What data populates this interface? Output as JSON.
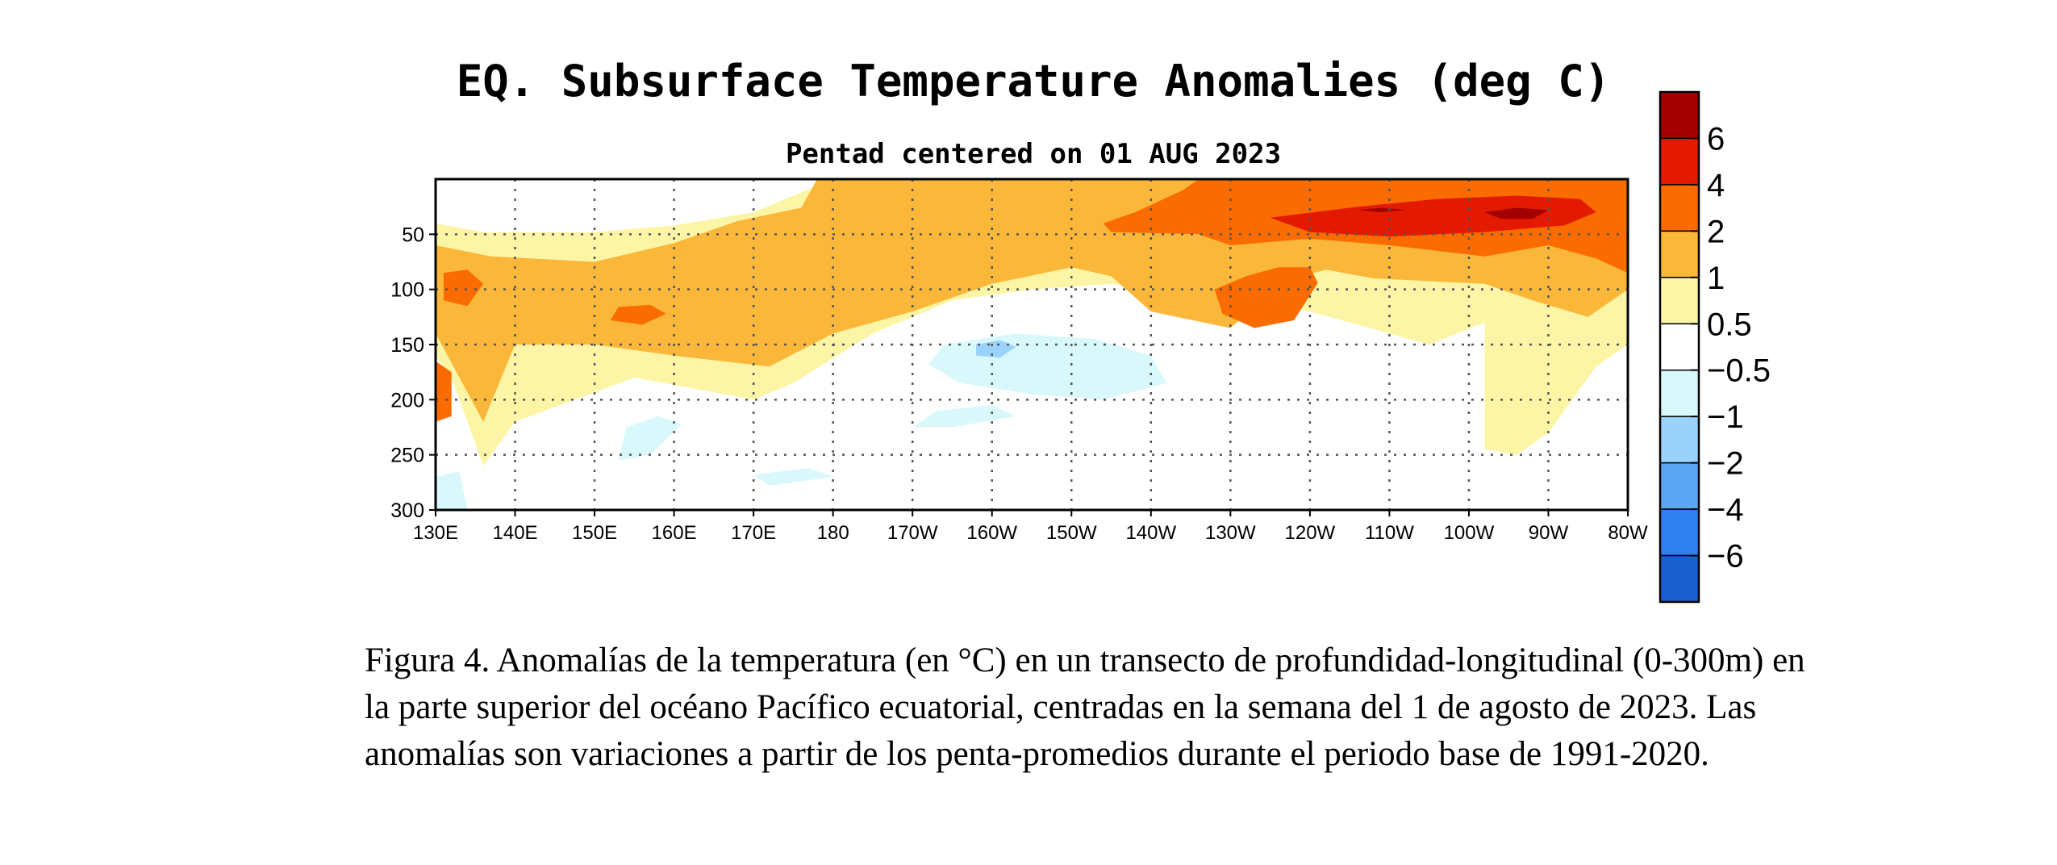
{
  "chart_data": {
    "type": "heatmap",
    "title": "EQ. Subsurface Temperature Anomalies (deg C)",
    "subtitle": "Pentad centered on 01 AUG 2023",
    "x_ticks": [
      "130E",
      "140E",
      "150E",
      "160E",
      "170E",
      "180",
      "170W",
      "160W",
      "150W",
      "140W",
      "130W",
      "120W",
      "110W",
      "100W",
      "90W",
      "80W"
    ],
    "x_range_deg_east": [
      130,
      280
    ],
    "y_ticks": [
      50,
      100,
      150,
      200,
      250,
      300
    ],
    "y_range_m": [
      0,
      300
    ],
    "grid": "dotted",
    "colorbar": {
      "labels": [
        "6",
        "4",
        "2",
        "1",
        "0.5",
        "−0.5",
        "−1",
        "−2",
        "−4",
        "−6"
      ],
      "colors": [
        "#a50000",
        "#e31a00",
        "#fa6c00",
        "#fbb739",
        "#fdf5a6",
        "#ffffff",
        "#d8f8fc",
        "#9ad2fb",
        "#5aa6f5",
        "#2e80ee",
        "#1a5ed0"
      ]
    },
    "anomaly_regions": [
      {
        "level": 0.5,
        "polygon": [
          [
            130,
            40
          ],
          [
            136,
            48
          ],
          [
            150,
            48
          ],
          [
            160,
            42
          ],
          [
            170,
            30
          ],
          [
            180,
            0
          ],
          [
            280,
            0
          ],
          [
            280,
            150
          ],
          [
            276,
            170
          ],
          [
            270,
            230
          ],
          [
            266,
            250
          ],
          [
            262,
            245
          ],
          [
            262,
            130
          ],
          [
            255,
            150
          ],
          [
            240,
            120
          ],
          [
            215,
            95
          ],
          [
            205,
            100
          ],
          [
            195,
            110
          ],
          [
            185,
            140
          ],
          [
            175,
            185
          ],
          [
            170,
            200
          ],
          [
            155,
            180
          ],
          [
            140,
            220
          ],
          [
            136,
            260
          ],
          [
            132,
            180
          ],
          [
            130,
            160
          ]
        ]
      },
      {
        "level": 1,
        "polygon": [
          [
            130,
            60
          ],
          [
            137,
            70
          ],
          [
            150,
            75
          ],
          [
            160,
            58
          ],
          [
            168,
            38
          ],
          [
            176,
            26
          ],
          [
            178,
            0
          ],
          [
            280,
            0
          ],
          [
            280,
            100
          ],
          [
            275,
            125
          ],
          [
            268,
            110
          ],
          [
            262,
            95
          ],
          [
            248,
            90
          ],
          [
            242,
            82
          ],
          [
            237,
            92
          ],
          [
            230,
            135
          ],
          [
            220,
            120
          ],
          [
            215,
            88
          ],
          [
            210,
            80
          ],
          [
            200,
            95
          ],
          [
            190,
            120
          ],
          [
            180,
            140
          ],
          [
            172,
            170
          ],
          [
            160,
            160
          ],
          [
            150,
            150
          ],
          [
            140,
            150
          ],
          [
            136,
            220
          ],
          [
            130,
            140
          ]
        ]
      },
      {
        "level": 2,
        "polygon": [
          [
            214,
            40
          ],
          [
            218,
            30
          ],
          [
            224,
            10
          ],
          [
            226,
            0
          ],
          [
            280,
            0
          ],
          [
            280,
            85
          ],
          [
            276,
            72
          ],
          [
            270,
            60
          ],
          [
            262,
            70
          ],
          [
            250,
            60
          ],
          [
            240,
            54
          ],
          [
            230,
            60
          ],
          [
            226,
            50
          ],
          [
            215,
            48
          ]
        ]
      },
      {
        "level": 4,
        "polygon": [
          [
            235,
            35
          ],
          [
            246,
            25
          ],
          [
            256,
            18
          ],
          [
            266,
            15
          ],
          [
            274,
            18
          ],
          [
            276,
            30
          ],
          [
            272,
            42
          ],
          [
            262,
            48
          ],
          [
            250,
            52
          ],
          [
            240,
            48
          ]
        ]
      },
      {
        "level": 6,
        "polygon": [
          [
            262,
            30
          ],
          [
            266,
            26
          ],
          [
            270,
            28
          ],
          [
            268,
            36
          ],
          [
            264,
            36
          ]
        ]
      },
      {
        "level": 6,
        "polygon": [
          [
            246,
            28
          ],
          [
            249,
            26
          ],
          [
            252,
            28
          ],
          [
            249,
            30
          ]
        ]
      },
      {
        "level": 2,
        "polygon": [
          [
            131,
            85
          ],
          [
            134,
            82
          ],
          [
            136,
            95
          ],
          [
            134,
            115
          ],
          [
            131,
            110
          ]
        ]
      },
      {
        "level": 2,
        "polygon": [
          [
            153,
            116
          ],
          [
            157,
            114
          ],
          [
            159,
            122
          ],
          [
            156,
            132
          ],
          [
            152,
            128
          ]
        ]
      },
      {
        "level": 2,
        "polygon": [
          [
            129,
            160
          ],
          [
            132,
            175
          ],
          [
            132,
            215
          ],
          [
            130,
            220
          ]
        ]
      },
      {
        "level": 2,
        "polygon": [
          [
            228,
            100
          ],
          [
            232,
            88
          ],
          [
            236,
            80
          ],
          [
            240,
            80
          ],
          [
            241,
            94
          ],
          [
            238,
            128
          ],
          [
            233,
            135
          ],
          [
            229,
            122
          ]
        ]
      },
      {
        "level": -0.5,
        "polygon": [
          [
            194,
            150
          ],
          [
            203,
            140
          ],
          [
            213,
            145
          ],
          [
            220,
            160
          ],
          [
            222,
            185
          ],
          [
            214,
            200
          ],
          [
            205,
            195
          ],
          [
            196,
            185
          ],
          [
            192,
            168
          ]
        ]
      },
      {
        "level": -0.5,
        "polygon": [
          [
            193,
            210
          ],
          [
            200,
            205
          ],
          [
            203,
            215
          ],
          [
            195,
            225
          ],
          [
            190,
            225
          ]
        ]
      },
      {
        "level": -0.5,
        "polygon": [
          [
            154,
            225
          ],
          [
            158,
            215
          ],
          [
            161,
            222
          ],
          [
            157,
            250
          ],
          [
            153,
            255
          ]
        ]
      },
      {
        "level": -0.5,
        "polygon": [
          [
            170,
            268
          ],
          [
            177,
            262
          ],
          [
            180,
            270
          ],
          [
            172,
            278
          ]
        ]
      },
      {
        "level": -0.5,
        "polygon": [
          [
            130,
            270
          ],
          [
            133,
            265
          ],
          [
            134,
            300
          ],
          [
            130,
            300
          ]
        ]
      },
      {
        "level": -1,
        "polygon": [
          [
            198,
            150
          ],
          [
            201,
            146
          ],
          [
            203,
            152
          ],
          [
            201,
            162
          ],
          [
            198,
            160
          ]
        ]
      }
    ]
  },
  "caption": "Figura 4. Anomalías de la temperatura (en °C) en un transecto de profundidad-longitudinal (0-300m) en la parte superior del océano Pacífico ecuatorial, centradas en la semana del 1 de agosto de 2023. Las anomalías son variaciones a partir de los penta-promedios durante el periodo base de 1991-2020."
}
